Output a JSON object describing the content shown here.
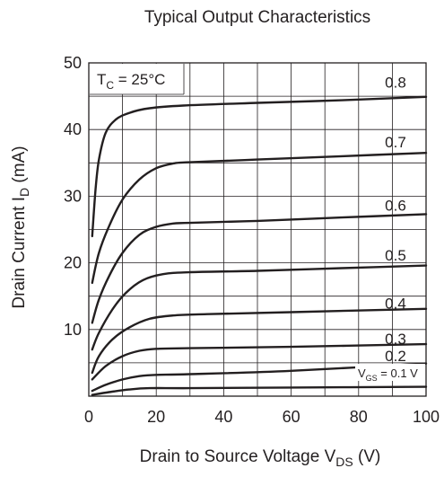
{
  "chart_data": {
    "type": "line",
    "title": "Typical Output Characteristics",
    "xlabel": "Drain to Source Voltage",
    "xlabel_symbol": "V",
    "xlabel_sub": "DS",
    "xlabel_unit": "(V)",
    "ylabel": "Drain Current",
    "ylabel_symbol": "I",
    "ylabel_sub": "D",
    "ylabel_unit": "(mA)",
    "xlim": [
      0,
      100
    ],
    "ylim": [
      0,
      50
    ],
    "x_ticks": [
      "0",
      "20",
      "40",
      "60",
      "80",
      "100"
    ],
    "y_ticks": [
      "10",
      "20",
      "30",
      "40",
      "50"
    ],
    "grid": true,
    "annotation": {
      "prefix": "T",
      "sub": "C",
      "suffix": " = 25°C"
    },
    "series": [
      {
        "name": "0.8",
        "points": [
          [
            1,
            24
          ],
          [
            2,
            31
          ],
          [
            3,
            35.5
          ],
          [
            5,
            39.5
          ],
          [
            8,
            41.5
          ],
          [
            12,
            42.5
          ],
          [
            18,
            43.2
          ],
          [
            28,
            43.6
          ],
          [
            50,
            44
          ],
          [
            75,
            44.4
          ],
          [
            100,
            44.9
          ]
        ]
      },
      {
        "name": "0.7",
        "points": [
          [
            1,
            17
          ],
          [
            3,
            21.5
          ],
          [
            6,
            25.5
          ],
          [
            10,
            29.5
          ],
          [
            15,
            32.5
          ],
          [
            20,
            34.2
          ],
          [
            25,
            34.9
          ],
          [
            30,
            35.1
          ],
          [
            50,
            35.5
          ],
          [
            75,
            36
          ],
          [
            100,
            36.5
          ]
        ]
      },
      {
        "name": "0.6",
        "points": [
          [
            1,
            11
          ],
          [
            3,
            14.5
          ],
          [
            6,
            18
          ],
          [
            10,
            21.5
          ],
          [
            15,
            24.2
          ],
          [
            20,
            25.4
          ],
          [
            25,
            25.9
          ],
          [
            30,
            26
          ],
          [
            50,
            26.3
          ],
          [
            75,
            26.8
          ],
          [
            100,
            27.3
          ]
        ]
      },
      {
        "name": "0.5",
        "points": [
          [
            1,
            7
          ],
          [
            3,
            9.5
          ],
          [
            7,
            13
          ],
          [
            11,
            15.5
          ],
          [
            16,
            17.4
          ],
          [
            22,
            18.3
          ],
          [
            30,
            18.6
          ],
          [
            50,
            18.8
          ],
          [
            75,
            19.2
          ],
          [
            100,
            19.6
          ]
        ]
      },
      {
        "name": "0.4",
        "points": [
          [
            1,
            3.5
          ],
          [
            3,
            6
          ],
          [
            7,
            8.5
          ],
          [
            12,
            10.3
          ],
          [
            18,
            11.6
          ],
          [
            25,
            12.1
          ],
          [
            35,
            12.3
          ],
          [
            60,
            12.6
          ],
          [
            100,
            13.1
          ]
        ]
      },
      {
        "name": "0.3",
        "points": [
          [
            1,
            2.5
          ],
          [
            5,
            4.5
          ],
          [
            10,
            6
          ],
          [
            15,
            6.8
          ],
          [
            20,
            7.1
          ],
          [
            30,
            7.2
          ],
          [
            60,
            7.4
          ],
          [
            100,
            7.8
          ]
        ]
      },
      {
        "name": "0.2",
        "points": [
          [
            1,
            0.8
          ],
          [
            5,
            1.7
          ],
          [
            10,
            2.5
          ],
          [
            15,
            3
          ],
          [
            20,
            3.2
          ],
          [
            30,
            3.3
          ],
          [
            60,
            3.8
          ],
          [
            100,
            4.9
          ]
        ]
      },
      {
        "name": "0.1",
        "points": [
          [
            1,
            0.2
          ],
          [
            6,
            0.6
          ],
          [
            12,
            1
          ],
          [
            18,
            1.2
          ],
          [
            30,
            1.2
          ],
          [
            60,
            1.3
          ],
          [
            100,
            1.4
          ]
        ]
      }
    ],
    "curve_labels": [
      "0.8",
      "0.7",
      "0.6",
      "0.5",
      "0.4",
      "0.3",
      "0.2"
    ],
    "bottom_curve_label": {
      "prefix": "V",
      "sub": "GS",
      "suffix": " = 0.1 V"
    }
  }
}
